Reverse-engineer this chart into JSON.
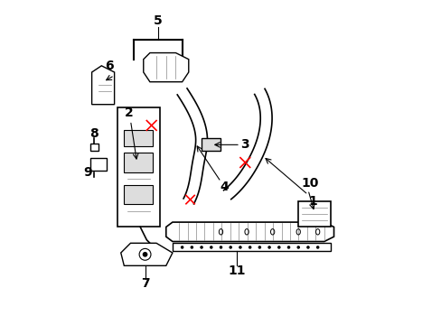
{
  "bg_color": "#ffffff",
  "line_color": "#000000",
  "red_color": "#ff0000",
  "gray_color": "#888888",
  "dark_gray": "#444444",
  "light_gray": "#cccccc",
  "figsize": [
    4.89,
    3.6
  ],
  "dpi": 100
}
